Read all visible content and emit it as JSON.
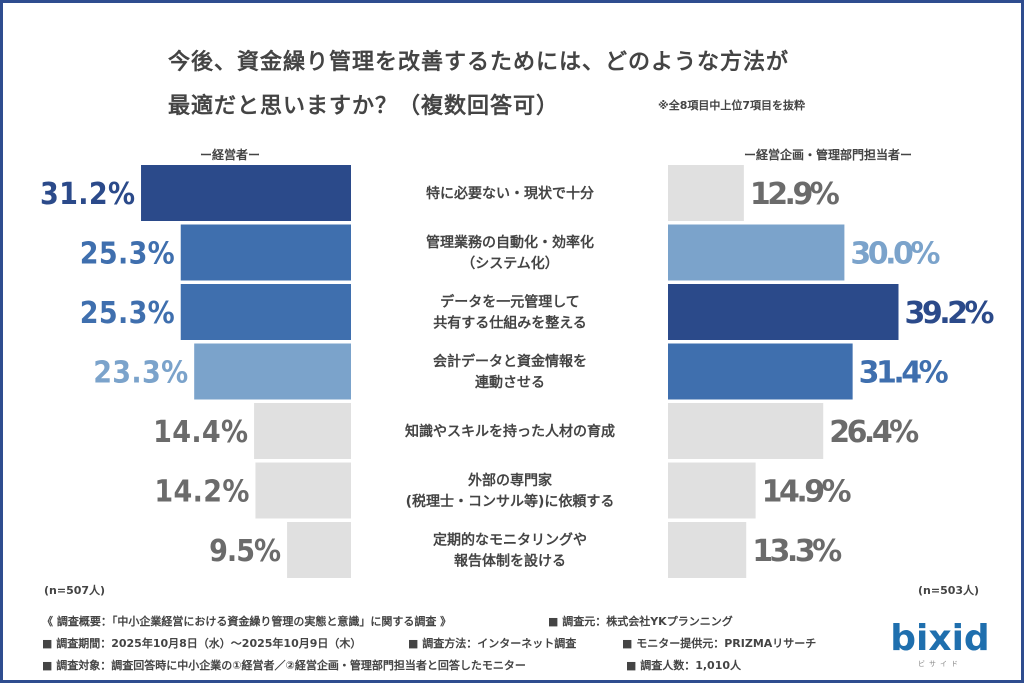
{
  "title_line1": "今後、資金繰り管理を改善するためには、どのような方法が",
  "title_line2": "最適だと思いますか？（複数回答可）",
  "note": "※全8項目中上位7項目を抜粋",
  "chart_data": {
    "type": "bar",
    "orientation": "horizontal-butterfly",
    "categories": [
      "特に必要ない・現状で十分",
      "管理業務の自動化・効率化\n（システム化）",
      "データを一元管理して\n共有する仕組みを整える",
      "会計データと資金情報を\n連動させる",
      "知識やスキルを持った人材の育成",
      "外部の専門家\n(税理士・コンサル等)に依頼する",
      "定期的なモニタリングや\n報告体制を設ける"
    ],
    "series": [
      {
        "name": "ー経営者ー",
        "sample": "(n=507人)",
        "values": [
          31.2,
          25.3,
          25.3,
          23.3,
          14.4,
          14.2,
          9.5
        ],
        "rank_colors": [
          "#2b4a8a",
          "#3f6fae",
          "#3f6fae",
          "#7ba3cb",
          "#e0e0e0",
          "#e0e0e0",
          "#e0e0e0"
        ]
      },
      {
        "name": "ー経営企画・管理部門担当者ー",
        "sample": "(n=503人)",
        "values": [
          12.9,
          30.0,
          39.2,
          31.4,
          26.4,
          14.9,
          13.3
        ],
        "rank_colors": [
          "#e0e0e0",
          "#7ba3cb",
          "#2b4a8a",
          "#3f6fae",
          "#e0e0e0",
          "#e0e0e0",
          "#e0e0e0"
        ]
      }
    ],
    "unit": "%",
    "grid": false
  },
  "footer": {
    "overview": "《 調査概要：「中小企業経営における資金繰り管理の実態と意識」に関する調査 》",
    "org": "■ 調査元：株式会社YKプランニング",
    "period": "■ 調査期間：2025年10月8日（水）～2025年10月9日（木）",
    "method": "■ 調査方法：インターネット調査",
    "monitor": "■ モニター提供元：PRIZMAリサーチ",
    "target": "■ 調査対象：調査回答時に中小企業の①経営者／②経営企画・管理部門担当者と回答したモニター",
    "count": "■ 調査人数：1,010人"
  },
  "logo": {
    "text": "bixid",
    "sub": "ビサイド",
    "color": "#1f6fae"
  }
}
